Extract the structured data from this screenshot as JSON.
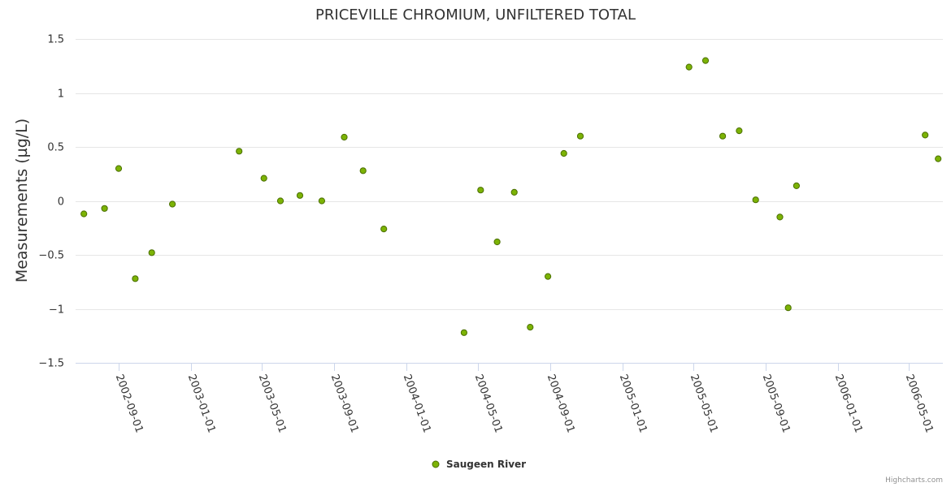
{
  "chart_data": {
    "type": "scatter",
    "title": "PRICEVILLE CHROMIUM, UNFILTERED TOTAL",
    "ylabel": "Measurements (µg/L)",
    "xlabel": "",
    "ylim": [
      -1.5,
      1.5
    ],
    "yticks": [
      1.5,
      1,
      0.5,
      0,
      -0.5,
      -1,
      -1.5
    ],
    "ytick_labels": [
      "1.5",
      "1",
      "0.5",
      "0",
      "−0.5",
      "−1",
      "−1.5"
    ],
    "xlim": [
      "2002-06-20",
      "2006-06-28"
    ],
    "xtick_labels": [
      "2002-09-01",
      "2003-01-01",
      "2003-05-01",
      "2003-09-01",
      "2004-01-01",
      "2004-05-01",
      "2004-09-01",
      "2005-01-01",
      "2005-05-01",
      "2005-09-01",
      "2006-01-01",
      "2006-05-01"
    ],
    "grid": true,
    "legend": "bottom-center",
    "series": [
      {
        "name": "Saugeen River",
        "color": "#7cb305",
        "points": [
          {
            "x": "2002-07-04",
            "y": -0.12
          },
          {
            "x": "2002-08-08",
            "y": -0.07
          },
          {
            "x": "2002-09-01",
            "y": 0.3
          },
          {
            "x": "2002-09-29",
            "y": -0.72
          },
          {
            "x": "2002-10-27",
            "y": -0.48
          },
          {
            "x": "2002-12-01",
            "y": -0.03
          },
          {
            "x": "2003-03-24",
            "y": 0.46
          },
          {
            "x": "2003-05-05",
            "y": 0.21
          },
          {
            "x": "2003-06-02",
            "y": 0.0
          },
          {
            "x": "2003-07-05",
            "y": 0.05
          },
          {
            "x": "2003-08-11",
            "y": 0.0
          },
          {
            "x": "2003-09-18",
            "y": 0.59
          },
          {
            "x": "2003-10-20",
            "y": 0.28
          },
          {
            "x": "2003-11-24",
            "y": -0.26
          },
          {
            "x": "2004-04-08",
            "y": -1.22
          },
          {
            "x": "2004-05-06",
            "y": 0.1
          },
          {
            "x": "2004-06-03",
            "y": -0.38
          },
          {
            "x": "2004-07-02",
            "y": 0.08
          },
          {
            "x": "2004-07-29",
            "y": -1.17
          },
          {
            "x": "2004-08-28",
            "y": -0.7
          },
          {
            "x": "2004-09-24",
            "y": 0.44
          },
          {
            "x": "2004-10-22",
            "y": 0.6
          },
          {
            "x": "2005-04-24",
            "y": 1.24
          },
          {
            "x": "2005-05-22",
            "y": 1.3
          },
          {
            "x": "2005-06-20",
            "y": 0.6
          },
          {
            "x": "2005-07-18",
            "y": 0.65
          },
          {
            "x": "2005-08-15",
            "y": 0.01
          },
          {
            "x": "2005-09-25",
            "y": -0.15
          },
          {
            "x": "2005-10-09",
            "y": -0.99
          },
          {
            "x": "2005-10-23",
            "y": 0.14
          },
          {
            "x": "2006-05-29",
            "y": 0.61
          },
          {
            "x": "2006-06-20",
            "y": 0.39
          }
        ]
      }
    ]
  },
  "credits": "Highcharts.com"
}
